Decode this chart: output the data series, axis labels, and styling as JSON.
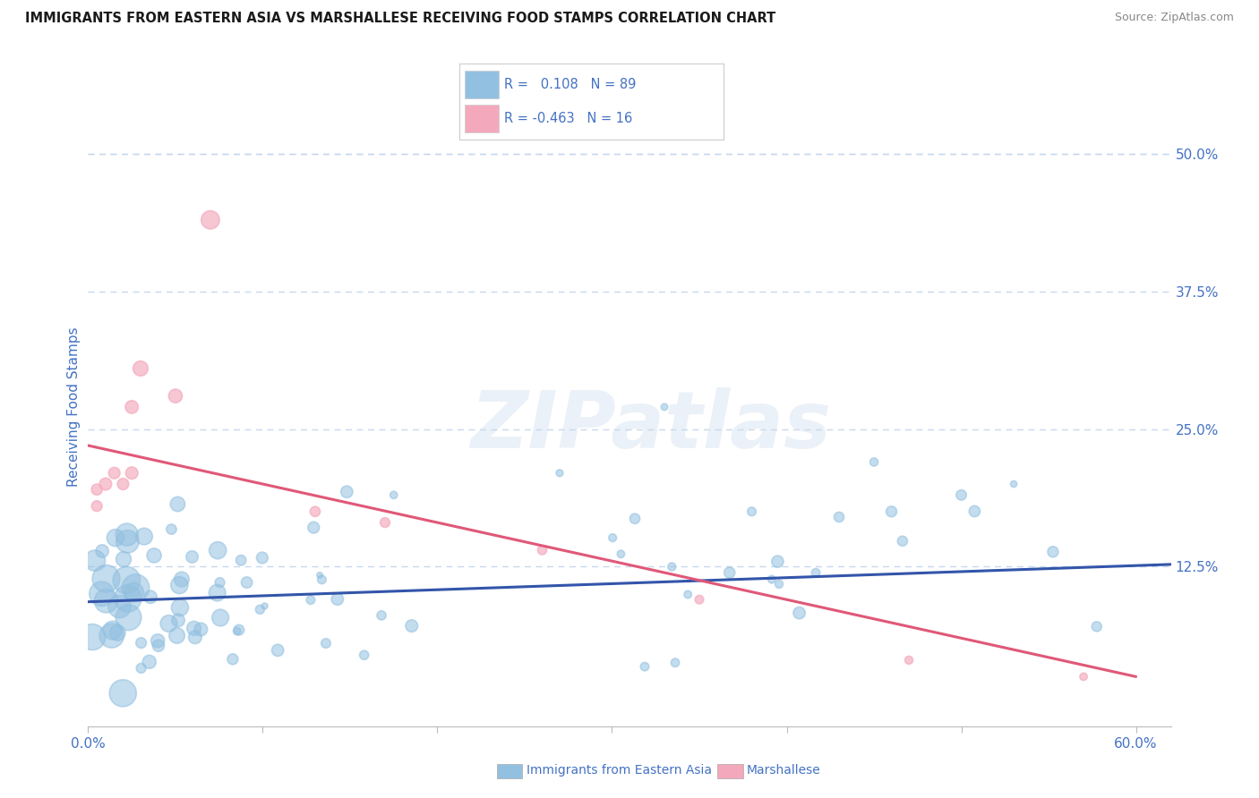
{
  "title": "IMMIGRANTS FROM EASTERN ASIA VS MARSHALLESE RECEIVING FOOD STAMPS CORRELATION CHART",
  "source": "Source: ZipAtlas.com",
  "ylabel": "Receiving Food Stamps",
  "xlim": [
    0.0,
    0.62
  ],
  "ylim": [
    -0.02,
    0.56
  ],
  "plot_xlim": [
    0.0,
    0.62
  ],
  "plot_ylim": [
    -0.02,
    0.56
  ],
  "xtick_positions": [
    0.0,
    0.1,
    0.2,
    0.3,
    0.4,
    0.5,
    0.6
  ],
  "xtick_labels": [
    "0.0%",
    "",
    "",
    "",
    "",
    "",
    "60.0%"
  ],
  "yticks_right": [
    0.125,
    0.25,
    0.375,
    0.5
  ],
  "yticklabels_right": [
    "12.5%",
    "25.0%",
    "37.5%",
    "50.0%"
  ],
  "blue_R": 0.108,
  "blue_N": 89,
  "pink_R": -0.463,
  "pink_N": 16,
  "blue_color": "#92c0e0",
  "pink_color": "#f4a8bc",
  "blue_line_color": "#3355aa",
  "pink_line_color": "#e05878",
  "legend_blue_label": "Immigrants from Eastern Asia",
  "legend_pink_label": "Marshallese",
  "watermark_text": "ZIPatlas",
  "background_color": "#ffffff",
  "grid_color": "#c8d8ec",
  "title_color": "#1a1a1a",
  "axis_label_color": "#4472c4",
  "source_color": "#888888",
  "blue_trend_x0": 0.0,
  "blue_trend_x1": 0.62,
  "blue_trend_y0": 0.093,
  "blue_trend_y1": 0.127,
  "pink_trend_x0": 0.0,
  "pink_trend_x1": 0.6,
  "pink_trend_y0": 0.235,
  "pink_trend_y1": 0.025
}
